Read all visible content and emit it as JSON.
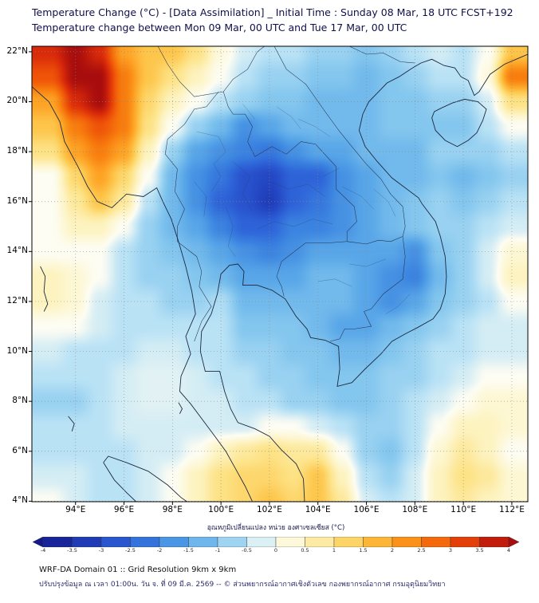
{
  "header": {
    "title_line1": "Temperature Change (°C) - [Data Assimilation] _ Initial Time : Sunday 08 Mar, 18 UTC FCST+192",
    "title_line2": "Temperature change between Mon 09 Mar, 00 UTC and Tue 17 Mar, 00 UTC"
  },
  "map": {
    "x_tick_labels": [
      "94°E",
      "96°E",
      "98°E",
      "100°E",
      "102°E",
      "104°E",
      "106°E",
      "108°E",
      "110°E",
      "112°E"
    ],
    "y_tick_labels": [
      "22°N",
      "20°N",
      "18°N",
      "16°N",
      "14°N",
      "12°N",
      "10°N",
      "8°N",
      "6°N",
      "4°N"
    ]
  },
  "colorbar": {
    "label": "อุณหภูมิเปลี่ยนแปลง หน่วย องศาเซลเซียส (°C)",
    "tick_labels": [
      "-4",
      "-3.5",
      "-3",
      "-2.5",
      "-2",
      "-1.5",
      "-1",
      "-0.5",
      "0",
      "0.5",
      "1",
      "1.5",
      "2",
      "2.5",
      "3",
      "3.5",
      "4"
    ],
    "stops": [
      {
        "v": -4.0,
        "c": "#141a8c"
      },
      {
        "v": -3.5,
        "c": "#1b2fa8"
      },
      {
        "v": -3.0,
        "c": "#2447c4"
      },
      {
        "v": -2.5,
        "c": "#2e63d8"
      },
      {
        "v": -2.0,
        "c": "#3b83e0"
      },
      {
        "v": -1.5,
        "c": "#58a6e8"
      },
      {
        "v": -1.0,
        "c": "#83c6ee"
      },
      {
        "v": -0.5,
        "c": "#b9e2f5"
      },
      {
        "v": 0.0,
        "c": "#fdfdf3"
      },
      {
        "v": 0.5,
        "c": "#fdf3c0"
      },
      {
        "v": 1.0,
        "c": "#fde285"
      },
      {
        "v": 1.5,
        "c": "#fdc64b"
      },
      {
        "v": 2.0,
        "c": "#fda325"
      },
      {
        "v": 2.5,
        "c": "#f87d0e"
      },
      {
        "v": 3.0,
        "c": "#ef5408"
      },
      {
        "v": 3.5,
        "c": "#d92a0a"
      },
      {
        "v": 4.0,
        "c": "#a80d0d"
      }
    ]
  },
  "footer": {
    "line1": "WRF-DA Domain 01 :: Grid Resolution 9km x 9km",
    "line2": "ปรับปรุงข้อมูล ณ เวลา 01:00น. วัน จ. ที่ 09 มี.ค. 2569 -- © ส่วนพยากรณ์อากาศเชิงตัวเลข กองพยากรณ์อากาศ กรมอุตุนิยมวิทยา"
  },
  "chart_data": {
    "type": "heatmap",
    "title": "Temperature Change (°C) - [Data Assimilation] _ Initial Time : Sunday 08 Mar, 18 UTC FCST+192",
    "subtitle": "Temperature change between Mon 09 Mar, 00 UTC and Tue 17 Mar, 00 UTC",
    "xlabel": "",
    "ylabel": "",
    "value_units": "°C",
    "colorbar_range": [
      -4,
      4
    ],
    "legend_label": "อุณหภูมิเปลี่ยนแปลง หน่วย องศาเซลเซียส (°C)",
    "x": [
      93,
      94,
      95,
      96,
      97,
      98,
      99,
      100,
      101,
      102,
      103,
      104,
      105,
      106,
      107,
      108,
      109,
      110,
      111,
      112
    ],
    "y": [
      22,
      21,
      20,
      19,
      18,
      17,
      16,
      15,
      14,
      13,
      12,
      11,
      10,
      9,
      8,
      7,
      6,
      5,
      4
    ],
    "values": [
      [
        3.5,
        4.0,
        3.5,
        2.0,
        1.5,
        1.5,
        1.0,
        0.2,
        -0.3,
        -0.5,
        -0.5,
        -0.8,
        -0.8,
        -1.0,
        -0.8,
        -0.5,
        -0.3,
        -0.5,
        0.0,
        1.5
      ],
      [
        3.0,
        4.0,
        4.0,
        2.5,
        1.5,
        1.0,
        0.5,
        0.0,
        -0.5,
        -0.8,
        -0.8,
        -1.0,
        -1.0,
        -1.2,
        -1.0,
        -0.8,
        -0.5,
        -0.5,
        0.2,
        2.5
      ],
      [
        2.0,
        3.5,
        4.0,
        2.5,
        1.2,
        0.5,
        0.0,
        -0.5,
        -0.8,
        -1.0,
        -1.0,
        -1.2,
        -1.2,
        -1.2,
        -1.0,
        -1.0,
        -0.8,
        -0.8,
        -0.3,
        1.0
      ],
      [
        1.5,
        2.5,
        3.0,
        2.5,
        1.0,
        0.0,
        -0.8,
        -1.2,
        -1.8,
        -1.5,
        -1.2,
        -1.2,
        -1.2,
        -1.2,
        -1.0,
        -1.0,
        -1.0,
        -1.0,
        -0.5,
        0.0
      ],
      [
        1.0,
        2.0,
        2.5,
        2.0,
        0.5,
        -0.8,
        -1.5,
        -1.8,
        -2.0,
        -2.2,
        -1.8,
        -1.5,
        -1.5,
        -1.2,
        -1.2,
        -1.2,
        -0.8,
        -0.8,
        -0.8,
        -0.5
      ],
      [
        0.0,
        1.2,
        2.0,
        1.2,
        0.0,
        -1.2,
        -1.8,
        -2.2,
        -2.8,
        -3.0,
        -2.5,
        -2.5,
        -1.8,
        -1.5,
        -1.2,
        -1.2,
        -1.0,
        -1.2,
        -1.0,
        -0.8
      ],
      [
        0.0,
        0.8,
        1.5,
        0.8,
        -0.5,
        -1.2,
        -1.8,
        -2.5,
        -2.8,
        -3.2,
        -2.5,
        -2.2,
        -1.8,
        -1.5,
        -1.2,
        -1.0,
        -0.8,
        -1.0,
        -0.8,
        -0.5
      ],
      [
        0.0,
        0.5,
        0.5,
        0.0,
        -0.8,
        -1.2,
        -1.5,
        -2.0,
        -2.5,
        -2.5,
        -2.0,
        -2.0,
        -1.8,
        -1.5,
        -1.2,
        -1.0,
        -0.8,
        -0.8,
        -0.5,
        -0.3
      ],
      [
        0.0,
        0.0,
        0.0,
        -0.5,
        -0.8,
        -1.0,
        -1.2,
        -1.5,
        -1.8,
        -2.0,
        -1.8,
        -1.5,
        -1.5,
        -1.5,
        -1.5,
        -1.8,
        -1.0,
        -0.8,
        -0.3,
        0.3
      ],
      [
        0.5,
        0.3,
        0.0,
        -0.5,
        -0.8,
        -0.8,
        -1.0,
        -1.2,
        -1.5,
        -1.5,
        -1.5,
        -1.2,
        -1.2,
        -1.5,
        -1.8,
        -2.0,
        -1.2,
        -0.8,
        -0.3,
        0.5
      ],
      [
        0.5,
        0.3,
        -0.3,
        -0.5,
        -0.5,
        -0.8,
        -0.8,
        -0.6,
        -1.2,
        -1.2,
        -1.2,
        -1.2,
        -1.2,
        -1.5,
        -1.8,
        -1.5,
        -1.0,
        -0.8,
        -0.5,
        0.0
      ],
      [
        0.0,
        0.0,
        -0.3,
        -0.5,
        -0.5,
        -0.5,
        -0.5,
        -0.5,
        -1.0,
        -1.0,
        -1.0,
        -1.2,
        -1.5,
        -1.5,
        -1.2,
        -1.0,
        -0.8,
        -0.5,
        -0.3,
        -0.3
      ],
      [
        -0.3,
        -0.5,
        -0.5,
        -0.5,
        -0.3,
        -0.3,
        -0.5,
        -0.5,
        -0.8,
        -0.8,
        -1.0,
        -1.0,
        -1.2,
        -1.2,
        -1.0,
        -0.8,
        -0.5,
        -0.5,
        -0.3,
        -0.3
      ],
      [
        -0.5,
        -0.5,
        -0.5,
        -0.3,
        -0.2,
        -0.2,
        -0.3,
        -0.5,
        -0.5,
        -0.8,
        -0.8,
        -1.0,
        -1.0,
        -1.0,
        -0.8,
        -0.8,
        -0.5,
        -0.3,
        0.0,
        0.0
      ],
      [
        -0.8,
        -0.8,
        -0.5,
        -0.3,
        -0.2,
        -0.2,
        -0.3,
        -0.3,
        -0.5,
        -0.5,
        -0.8,
        -0.8,
        -1.0,
        -1.0,
        -0.8,
        -0.5,
        -0.3,
        0.0,
        0.3,
        0.3
      ],
      [
        -0.5,
        -0.5,
        -0.5,
        -0.3,
        -0.3,
        -0.3,
        -0.3,
        -0.3,
        -0.3,
        0.0,
        0.0,
        -0.3,
        -0.5,
        -0.8,
        -0.8,
        -0.5,
        0.0,
        0.5,
        0.5,
        0.3
      ],
      [
        -0.5,
        -0.5,
        -0.5,
        -0.5,
        -0.3,
        -0.3,
        0.0,
        0.5,
        0.8,
        1.0,
        0.8,
        0.8,
        0.0,
        -0.8,
        -1.0,
        -0.5,
        0.3,
        0.8,
        0.5,
        0.0
      ],
      [
        -0.3,
        -0.3,
        -0.5,
        -0.5,
        -0.3,
        0.0,
        0.5,
        1.0,
        1.2,
        1.2,
        1.0,
        1.5,
        0.5,
        -0.5,
        -0.8,
        -0.3,
        0.5,
        1.0,
        0.8,
        0.3
      ],
      [
        0.0,
        -0.3,
        -0.5,
        -0.5,
        -0.3,
        0.0,
        0.5,
        1.0,
        1.2,
        1.5,
        1.2,
        1.5,
        0.8,
        -0.3,
        -0.5,
        -0.3,
        0.5,
        0.8,
        0.5,
        0.3
      ]
    ]
  }
}
